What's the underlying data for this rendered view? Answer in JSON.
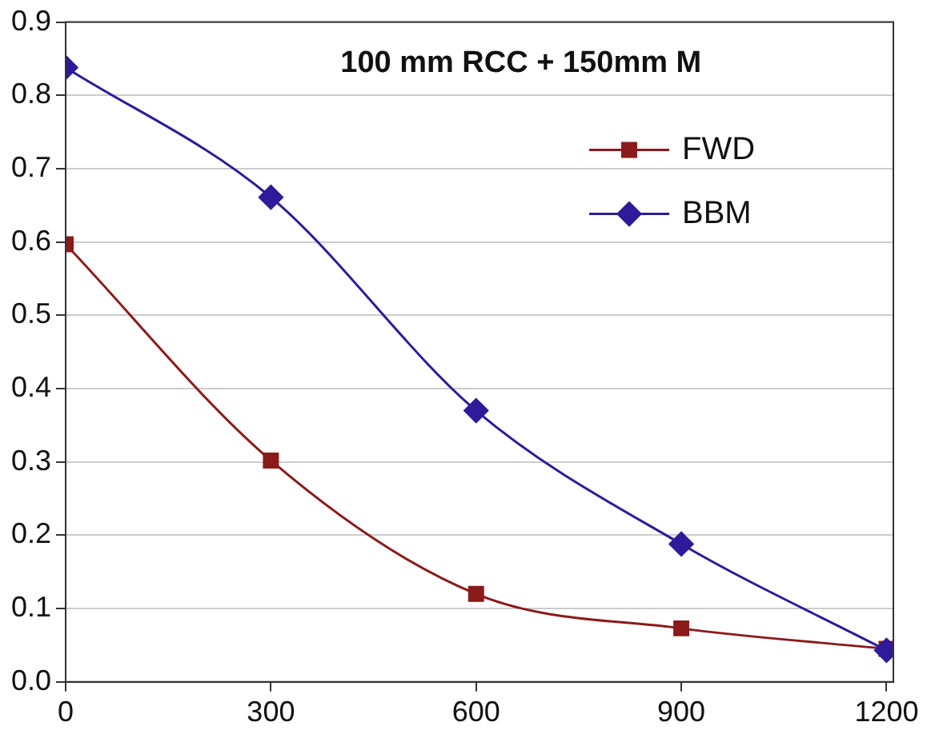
{
  "chart_data": {
    "type": "line",
    "title": "100 mm RCC + 150mm M",
    "x": [
      0,
      300,
      600,
      900,
      1200
    ],
    "series": [
      {
        "name": "FWD",
        "color": "#8b1a1a",
        "marker": "square",
        "values": [
          0.597,
          0.302,
          0.12,
          0.073,
          0.045
        ]
      },
      {
        "name": "BBM",
        "color": "#2e1a9a",
        "marker": "diamond",
        "values": [
          0.838,
          0.661,
          0.37,
          0.188,
          0.043
        ]
      }
    ],
    "xlim": [
      0,
      1210
    ],
    "xticks": [
      0,
      300,
      600,
      900,
      1200
    ],
    "ylim": [
      0,
      0.9
    ],
    "yticks": [
      {
        "value": 0,
        "label": "0.0"
      },
      {
        "value": 0.1,
        "label": "0.1"
      },
      {
        "value": 0.2,
        "label": "0.2"
      },
      {
        "value": 0.3,
        "label": "0.3"
      },
      {
        "value": 0.4,
        "label": "0.4"
      },
      {
        "value": 0.5,
        "label": "0.5"
      },
      {
        "value": 0.6,
        "label": "0.6"
      },
      {
        "value": 0.7,
        "label": "0.7"
      },
      {
        "value": 0.8,
        "label": "0.8"
      },
      {
        "value": 0.9,
        "label": "0.9"
      }
    ],
    "grid": "y",
    "legend": "top right",
    "line_style": "solid"
  }
}
